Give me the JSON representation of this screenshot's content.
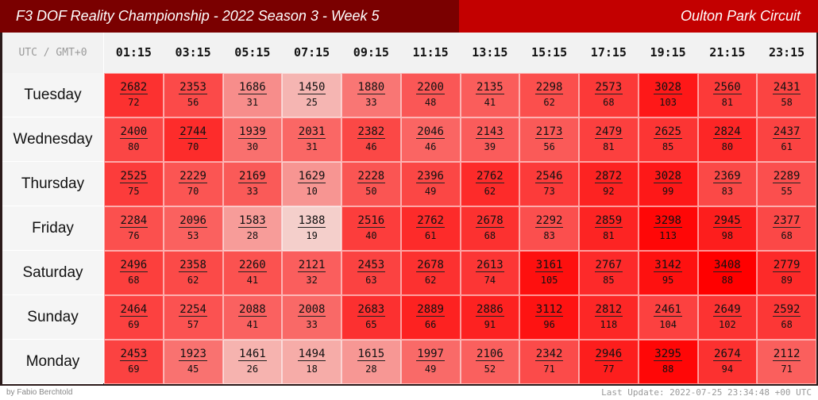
{
  "header": {
    "title": "F3 DOF Reality Championship - 2022 Season 3 - Week 5",
    "track": "Oulton Park Circuit"
  },
  "timezone_label": "UTC / GMT+0",
  "footer": {
    "credit": "by Fabio Berchtold",
    "last_update": "Last Update: 2022-07-25 23:34:48 +00 UTC"
  },
  "colors": {
    "header_dark": "#7a0000",
    "header_red": "#c30000",
    "heat_low": "#f4cfcb",
    "heat_high": "#ff0000"
  },
  "chart_data": {
    "type": "heatmap",
    "title": "F3 DOF Reality Championship - 2022 Season 3 - Week 5",
    "subtitle": "Oulton Park Circuit",
    "x": [
      "01:15",
      "03:15",
      "05:15",
      "07:15",
      "09:15",
      "11:15",
      "13:15",
      "15:15",
      "17:15",
      "19:15",
      "21:15",
      "23:15"
    ],
    "y": [
      "Tuesday",
      "Wednesday",
      "Thursday",
      "Friday",
      "Saturday",
      "Sunday",
      "Monday"
    ],
    "values": [
      [
        2682,
        2353,
        1686,
        1450,
        1880,
        2200,
        2135,
        2298,
        2573,
        3028,
        2560,
        2431
      ],
      [
        2400,
        2744,
        1939,
        2031,
        2382,
        2046,
        2143,
        2173,
        2479,
        2625,
        2824,
        2437
      ],
      [
        2525,
        2229,
        2169,
        1629,
        2228,
        2396,
        2762,
        2546,
        2872,
        3028,
        2369,
        2289
      ],
      [
        2284,
        2096,
        1583,
        1388,
        2516,
        2762,
        2678,
        2292,
        2859,
        3298,
        2945,
        2377
      ],
      [
        2496,
        2358,
        2260,
        2121,
        2453,
        2678,
        2613,
        3161,
        2767,
        3142,
        3408,
        2779
      ],
      [
        2464,
        2254,
        2088,
        2008,
        2683,
        2889,
        2886,
        3112,
        2812,
        2461,
        2649,
        2592
      ],
      [
        2453,
        1923,
        1461,
        1494,
        1615,
        1997,
        2106,
        2342,
        2946,
        3295,
        2674,
        2112
      ]
    ],
    "counts": [
      [
        72,
        56,
        31,
        25,
        33,
        48,
        41,
        62,
        68,
        103,
        81,
        58
      ],
      [
        80,
        70,
        30,
        31,
        46,
        46,
        39,
        56,
        81,
        85,
        80,
        61
      ],
      [
        75,
        70,
        33,
        10,
        50,
        49,
        62,
        73,
        92,
        99,
        83,
        55
      ],
      [
        76,
        53,
        28,
        19,
        40,
        61,
        68,
        83,
        81,
        113,
        98,
        68
      ],
      [
        68,
        62,
        41,
        32,
        63,
        62,
        74,
        105,
        85,
        95,
        88,
        89
      ],
      [
        69,
        57,
        41,
        33,
        65,
        66,
        91,
        96,
        118,
        104,
        102,
        68
      ],
      [
        69,
        45,
        26,
        18,
        28,
        49,
        52,
        71,
        77,
        88,
        94,
        71
      ]
    ]
  }
}
